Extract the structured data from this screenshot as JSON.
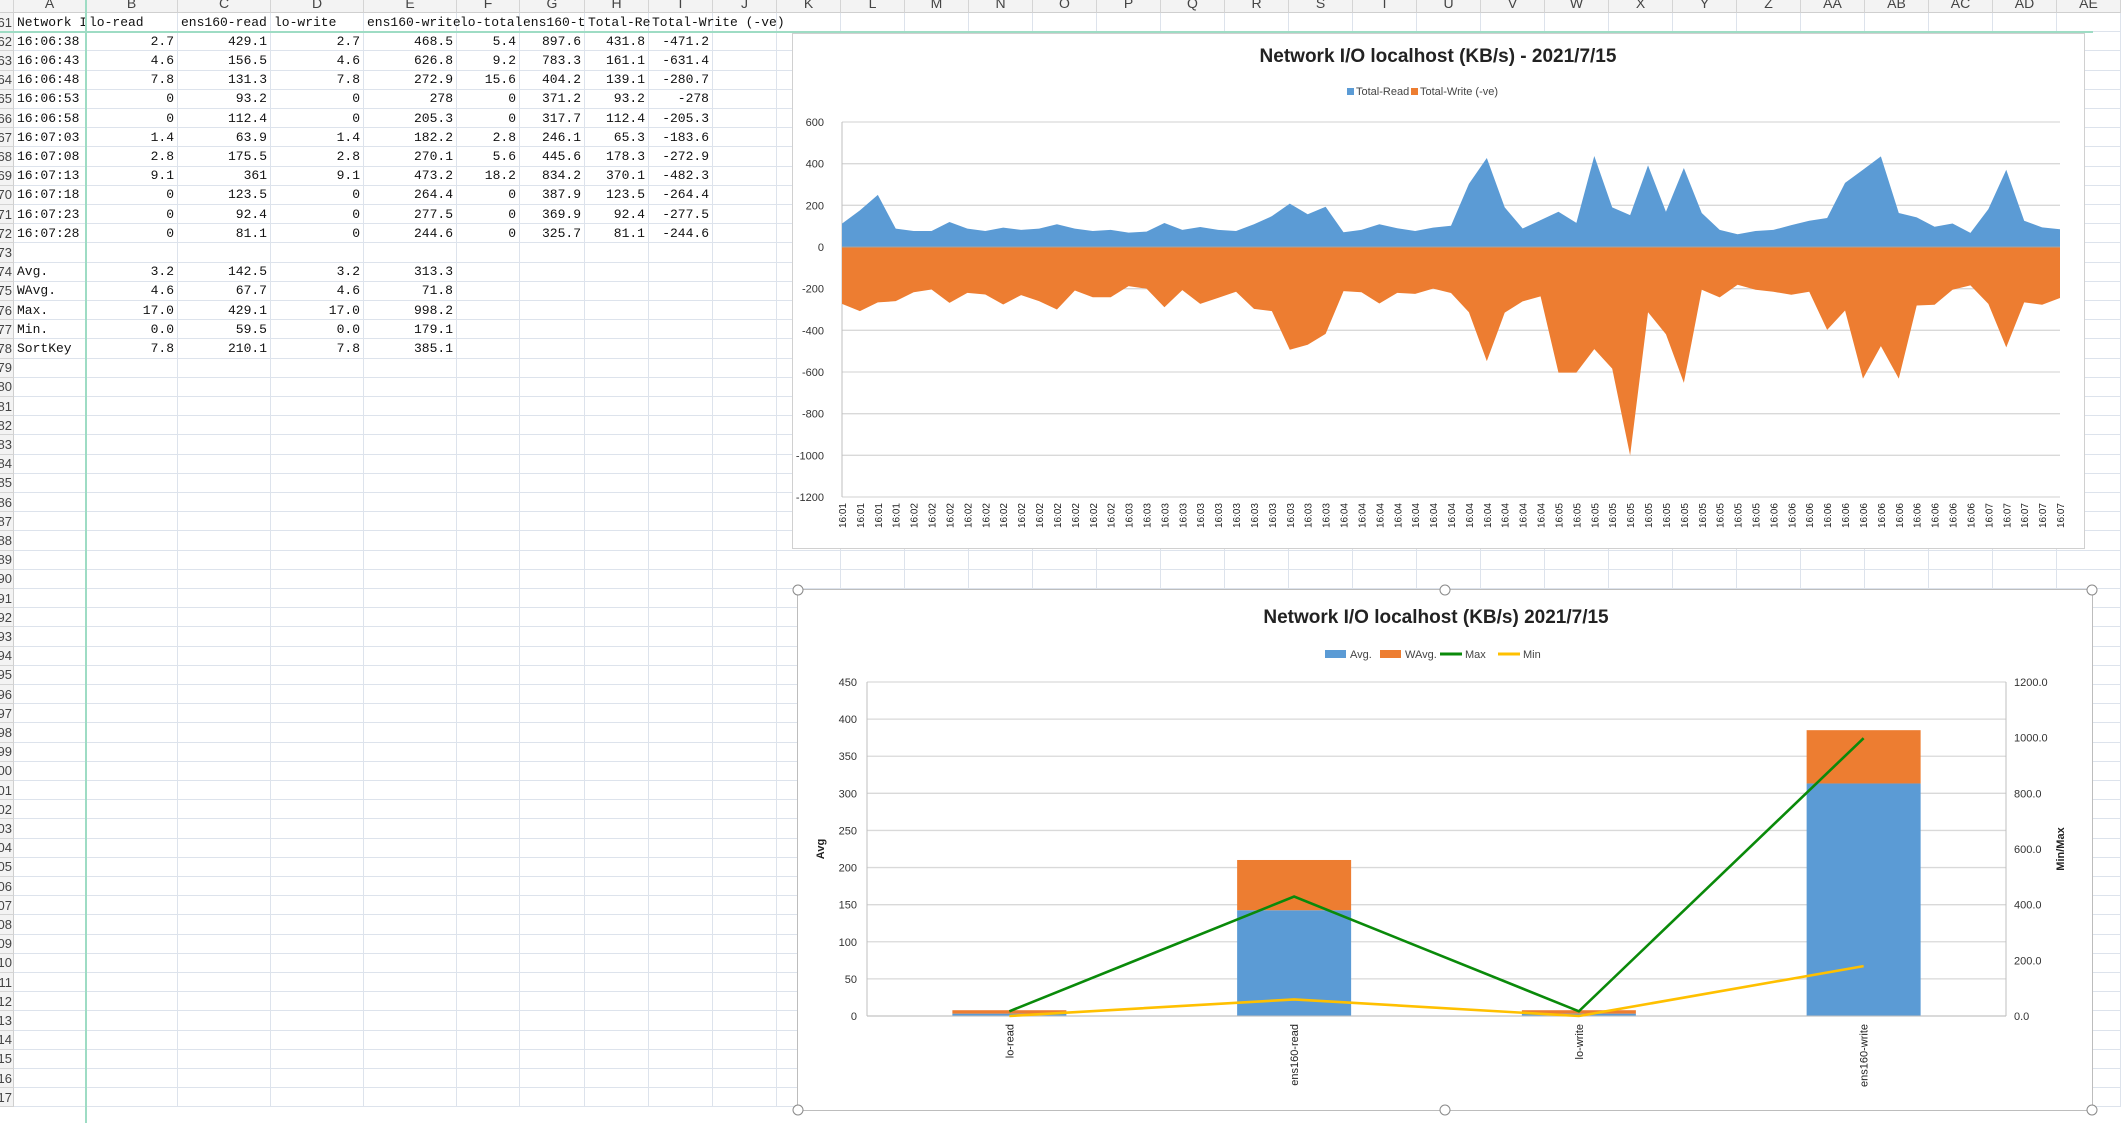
{
  "sheet": {
    "columns": [
      "A",
      "B",
      "C",
      "D",
      "E",
      "F",
      "G",
      "H",
      "I",
      "J",
      "K",
      "L",
      "M",
      "N",
      "O",
      "P",
      "Q",
      "R",
      "S",
      "T",
      "U",
      "V",
      "W",
      "X",
      "Y",
      "Z",
      "AA",
      "AB",
      "AC",
      "AD",
      "AE"
    ],
    "row_numbers": [
      "61",
      "62",
      "63",
      "64",
      "65",
      "66",
      "67",
      "68",
      "69",
      "70",
      "71",
      "72",
      "73",
      "74",
      "75",
      "76",
      "77",
      "78",
      "79",
      "80",
      "81",
      "82",
      "83",
      "84",
      "85",
      "86",
      "87",
      "88",
      "89",
      "90",
      "91",
      "92",
      "93",
      "94",
      "95",
      "96",
      "97",
      "98",
      "99",
      "100",
      "101",
      "102",
      "103",
      "104",
      "105",
      "106",
      "107",
      "108",
      "109",
      "110",
      "111",
      "112",
      "113",
      "114",
      "115",
      "116",
      "117"
    ],
    "rows": [
      [
        "Network I",
        "lo-read",
        "ens160-read",
        "lo-write",
        "ens160-write",
        "lo-total",
        "ens160-t",
        "Total-Re",
        "Total-Write (-ve)"
      ],
      [
        "16:06:38",
        "2.7",
        "429.1",
        "2.7",
        "468.5",
        "5.4",
        "897.6",
        "431.8",
        "-471.2"
      ],
      [
        "16:06:43",
        "4.6",
        "156.5",
        "4.6",
        "626.8",
        "9.2",
        "783.3",
        "161.1",
        "-631.4"
      ],
      [
        "16:06:48",
        "7.8",
        "131.3",
        "7.8",
        "272.9",
        "15.6",
        "404.2",
        "139.1",
        "-280.7"
      ],
      [
        "16:06:53",
        "0",
        "93.2",
        "0",
        "278",
        "0",
        "371.2",
        "93.2",
        "-278"
      ],
      [
        "16:06:58",
        "0",
        "112.4",
        "0",
        "205.3",
        "0",
        "317.7",
        "112.4",
        "-205.3"
      ],
      [
        "16:07:03",
        "1.4",
        "63.9",
        "1.4",
        "182.2",
        "2.8",
        "246.1",
        "65.3",
        "-183.6"
      ],
      [
        "16:07:08",
        "2.8",
        "175.5",
        "2.8",
        "270.1",
        "5.6",
        "445.6",
        "178.3",
        "-272.9"
      ],
      [
        "16:07:13",
        "9.1",
        "361",
        "9.1",
        "473.2",
        "18.2",
        "834.2",
        "370.1",
        "-482.3"
      ],
      [
        "16:07:18",
        "0",
        "123.5",
        "0",
        "264.4",
        "0",
        "387.9",
        "123.5",
        "-264.4"
      ],
      [
        "16:07:23",
        "0",
        "92.4",
        "0",
        "277.5",
        "0",
        "369.9",
        "92.4",
        "-277.5"
      ],
      [
        "16:07:28",
        "0",
        "81.1",
        "0",
        "244.6",
        "0",
        "325.7",
        "81.1",
        "-244.6"
      ],
      [],
      [
        "Avg.",
        "3.2",
        "142.5",
        "3.2",
        "313.3"
      ],
      [
        "WAvg.",
        "4.6",
        "67.7",
        "4.6",
        "71.8"
      ],
      [
        "Max.",
        "17.0",
        "429.1",
        "17.0",
        "998.2"
      ],
      [
        "Min.",
        "0.0",
        "59.5",
        "0.0",
        "179.1"
      ],
      [
        "SortKey",
        "7.8",
        "210.1",
        "7.8",
        "385.1"
      ]
    ]
  },
  "colors": {
    "read": "#5b9bd5",
    "write": "#ed7d31",
    "max": "#0a8a0a",
    "min": "#ffc000",
    "grid": "#d9d9d9",
    "freeze": "#9edcc4"
  },
  "chart_data": [
    {
      "type": "area",
      "title": "Network I/O localhost (KB/s) - 2021/7/15",
      "legend": "top",
      "grid": true,
      "ylim": [
        -1200,
        600
      ],
      "yticks": [
        "600",
        "400",
        "200",
        "0",
        "-200",
        "-400",
        "-600",
        "-800",
        "-1000",
        "-1200"
      ],
      "categories": [
        "16:01",
        "16:01",
        "16:01",
        "16:01",
        "16:02",
        "16:02",
        "16:02",
        "16:02",
        "16:02",
        "16:02",
        "16:02",
        "16:02",
        "16:02",
        "16:02",
        "16:02",
        "16:02",
        "16:03",
        "16:03",
        "16:03",
        "16:03",
        "16:03",
        "16:03",
        "16:03",
        "16:03",
        "16:03",
        "16:03",
        "16:03",
        "16:03",
        "16:04",
        "16:04",
        "16:04",
        "16:04",
        "16:04",
        "16:04",
        "16:04",
        "16:04",
        "16:04",
        "16:04",
        "16:04",
        "16:04",
        "16:05",
        "16:05",
        "16:05",
        "16:05",
        "16:05",
        "16:05",
        "16:05",
        "16:05",
        "16:05",
        "16:05",
        "16:05",
        "16:05",
        "16:06",
        "16:06",
        "16:06",
        "16:06",
        "16:06",
        "16:06",
        "16:06",
        "16:06",
        "16:06",
        "16:06",
        "16:06",
        "16:06",
        "16:07",
        "16:07",
        "16:07",
        "16:07",
        "16:07"
      ],
      "series": [
        {
          "name": "Total-Read",
          "values": [
            112,
            176,
            250,
            88,
            77,
            77,
            120,
            88,
            77,
            93,
            82,
            88,
            109,
            88,
            77,
            82,
            69,
            74,
            115,
            82,
            96,
            82,
            77,
            109,
            148,
            208,
            157,
            193,
            71,
            82,
            109,
            90,
            77,
            93,
            102,
            303,
            427,
            190,
            89,
            129,
            169,
            116,
            437,
            190,
            153,
            392,
            169,
            379,
            163,
            82,
            61,
            77,
            82,
            105,
            126,
            139,
            308,
            371,
            435,
            163,
            142,
            97,
            113,
            68,
            182,
            371,
            126,
            94,
            85
          ]
        },
        {
          "name": "Total-Write (-ve)",
          "values": [
            -273,
            -308,
            -266,
            -260,
            -217,
            -204,
            -268,
            -220,
            -228,
            -276,
            -231,
            -260,
            -300,
            -209,
            -241,
            -241,
            -188,
            -200,
            -289,
            -207,
            -273,
            -244,
            -215,
            -297,
            -308,
            -493,
            -469,
            -417,
            -212,
            -217,
            -271,
            -220,
            -225,
            -200,
            -221,
            -313,
            -548,
            -315,
            -261,
            -237,
            -603,
            -603,
            -490,
            -584,
            -1000,
            -313,
            -419,
            -652,
            -205,
            -242,
            -181,
            -205,
            -215,
            -229,
            -215,
            -398,
            -305,
            -632,
            -476,
            -632,
            -281,
            -277,
            -205,
            -184,
            -273,
            -482,
            -266,
            -277,
            -245
          ]
        }
      ]
    },
    {
      "type": "bar",
      "stacked": true,
      "title": "Network I/O localhost (KB/s)  2021/7/15",
      "legend": "top",
      "grid": true,
      "ylabel": "Avg",
      "y2label": "Min/Max",
      "ylim": [
        0,
        450
      ],
      "y2lim": [
        0,
        1200
      ],
      "yticks": [
        "0",
        "50",
        "100",
        "150",
        "200",
        "250",
        "300",
        "350",
        "400",
        "450"
      ],
      "y2ticks": [
        "0.0",
        "200.0",
        "400.0",
        "600.0",
        "800.0",
        "1000.0",
        "1200.0"
      ],
      "categories": [
        "lo-read",
        "ens160-read",
        "lo-write",
        "ens160-write"
      ],
      "series": [
        {
          "name": "Avg.",
          "kind": "bar",
          "values": [
            3.2,
            142.5,
            3.2,
            313.3
          ]
        },
        {
          "name": "WAvg.",
          "kind": "bar",
          "values": [
            4.6,
            67.7,
            4.6,
            71.8
          ]
        },
        {
          "name": "Max",
          "kind": "line",
          "axis": "secondary",
          "values": [
            17.0,
            429.1,
            17.0,
            998.2
          ]
        },
        {
          "name": "Min",
          "kind": "line",
          "axis": "secondary",
          "values": [
            0.0,
            59.5,
            0.0,
            179.1
          ]
        }
      ]
    }
  ]
}
